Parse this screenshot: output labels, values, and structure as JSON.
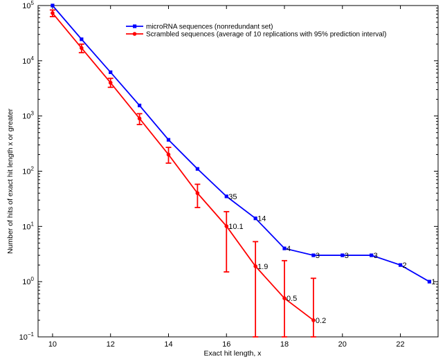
{
  "chart_data": {
    "type": "line",
    "xlabel": "Exact hit length, x",
    "ylabel": "Number of hits of exact hit length x or greater",
    "x_scale": "linear",
    "y_scale": "log",
    "xlim": [
      9.5,
      23.3
    ],
    "ylim": [
      0.1,
      100000
    ],
    "x_ticks": [
      10,
      12,
      14,
      16,
      18,
      20,
      22
    ],
    "x_tick_labels": [
      "10",
      "12",
      "14",
      "16",
      "18",
      "20",
      "22"
    ],
    "y_ticks": [
      0.1,
      1,
      10,
      100,
      1000,
      10000,
      100000
    ],
    "y_tick_labels": [
      {
        "base": "10",
        "exp": "−1"
      },
      {
        "base": "10",
        "exp": "0"
      },
      {
        "base": "10",
        "exp": "1"
      },
      {
        "base": "10",
        "exp": "2"
      },
      {
        "base": "10",
        "exp": "3"
      },
      {
        "base": "10",
        "exp": "4"
      },
      {
        "base": "10",
        "exp": "5"
      }
    ],
    "grid": false,
    "legend_position": "top-right",
    "series": [
      {
        "name": "microRNA sequences (nonredundant set)",
        "color": "#0000ff",
        "marker": "square",
        "x": [
          10,
          11,
          12,
          13,
          14,
          15,
          16,
          17,
          18,
          19,
          20,
          21,
          22,
          23
        ],
        "y": [
          100000,
          24500,
          6200,
          1550,
          370,
          110,
          35,
          14,
          4,
          3,
          3,
          3,
          2,
          1
        ],
        "point_labels": [
          null,
          null,
          null,
          null,
          null,
          null,
          "35",
          "14",
          "4",
          "3",
          "3",
          "3",
          "2",
          "1"
        ]
      },
      {
        "name": "Scrambled sequences (average of 10 replications with 95% prediction interval)",
        "color": "#ff0000",
        "marker": "circle",
        "x": [
          10,
          11,
          12,
          13,
          14,
          15,
          16,
          17,
          18,
          19
        ],
        "y": [
          73000,
          17000,
          4000,
          900,
          200,
          40,
          10.1,
          1.9,
          0.5,
          0.2
        ],
        "err_low": [
          63000,
          14000,
          3300,
          700,
          140,
          22,
          1.5,
          0.1,
          0.1,
          0.1
        ],
        "err_high": [
          83000,
          20000,
          4800,
          1100,
          270,
          58,
          18.5,
          5.3,
          2.4,
          1.15
        ],
        "point_labels": [
          null,
          null,
          null,
          null,
          null,
          null,
          "10.1",
          "1.9",
          "0.5",
          "0.2"
        ]
      }
    ]
  }
}
